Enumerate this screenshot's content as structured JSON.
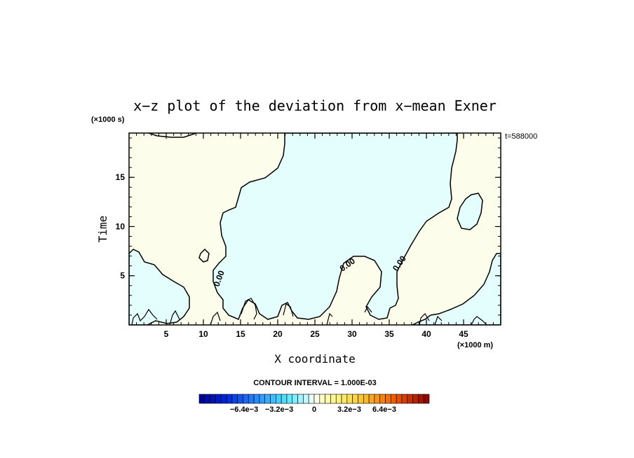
{
  "chart_data": {
    "type": "contour",
    "title": "x−z plot of the deviation from x−mean Exner",
    "xlabel": "X coordinate",
    "ylabel": "Time",
    "x_unit": "(×1000 m)",
    "y_unit": "(×1000 s)",
    "time_stamp": "t=588000",
    "xlim": [
      0,
      50
    ],
    "ylim": [
      0,
      19.5
    ],
    "x_ticks": [
      5,
      10,
      15,
      20,
      25,
      30,
      35,
      40,
      45
    ],
    "y_ticks": [
      5,
      10,
      15
    ],
    "contour_labels": [
      "0.00",
      "0.00",
      "0.00"
    ],
    "contour_interval_text": "CONTOUR INTERVAL = 1.000E-03",
    "colorbar": {
      "tick_labels": [
        "−6.4e−3",
        "−3.2e−3",
        "0",
        "3.2e−3",
        "6.4e−3"
      ],
      "min": -0.0105,
      "max": 0.0105,
      "tick_values": [
        -0.0064,
        -0.0032,
        0,
        0.0032,
        0.0064
      ],
      "n_bins": 42
    },
    "regions": [
      {
        "sign": "negative",
        "fill": "#e4fdfd"
      },
      {
        "sign": "positive",
        "fill": "#fdfdec"
      }
    ]
  }
}
